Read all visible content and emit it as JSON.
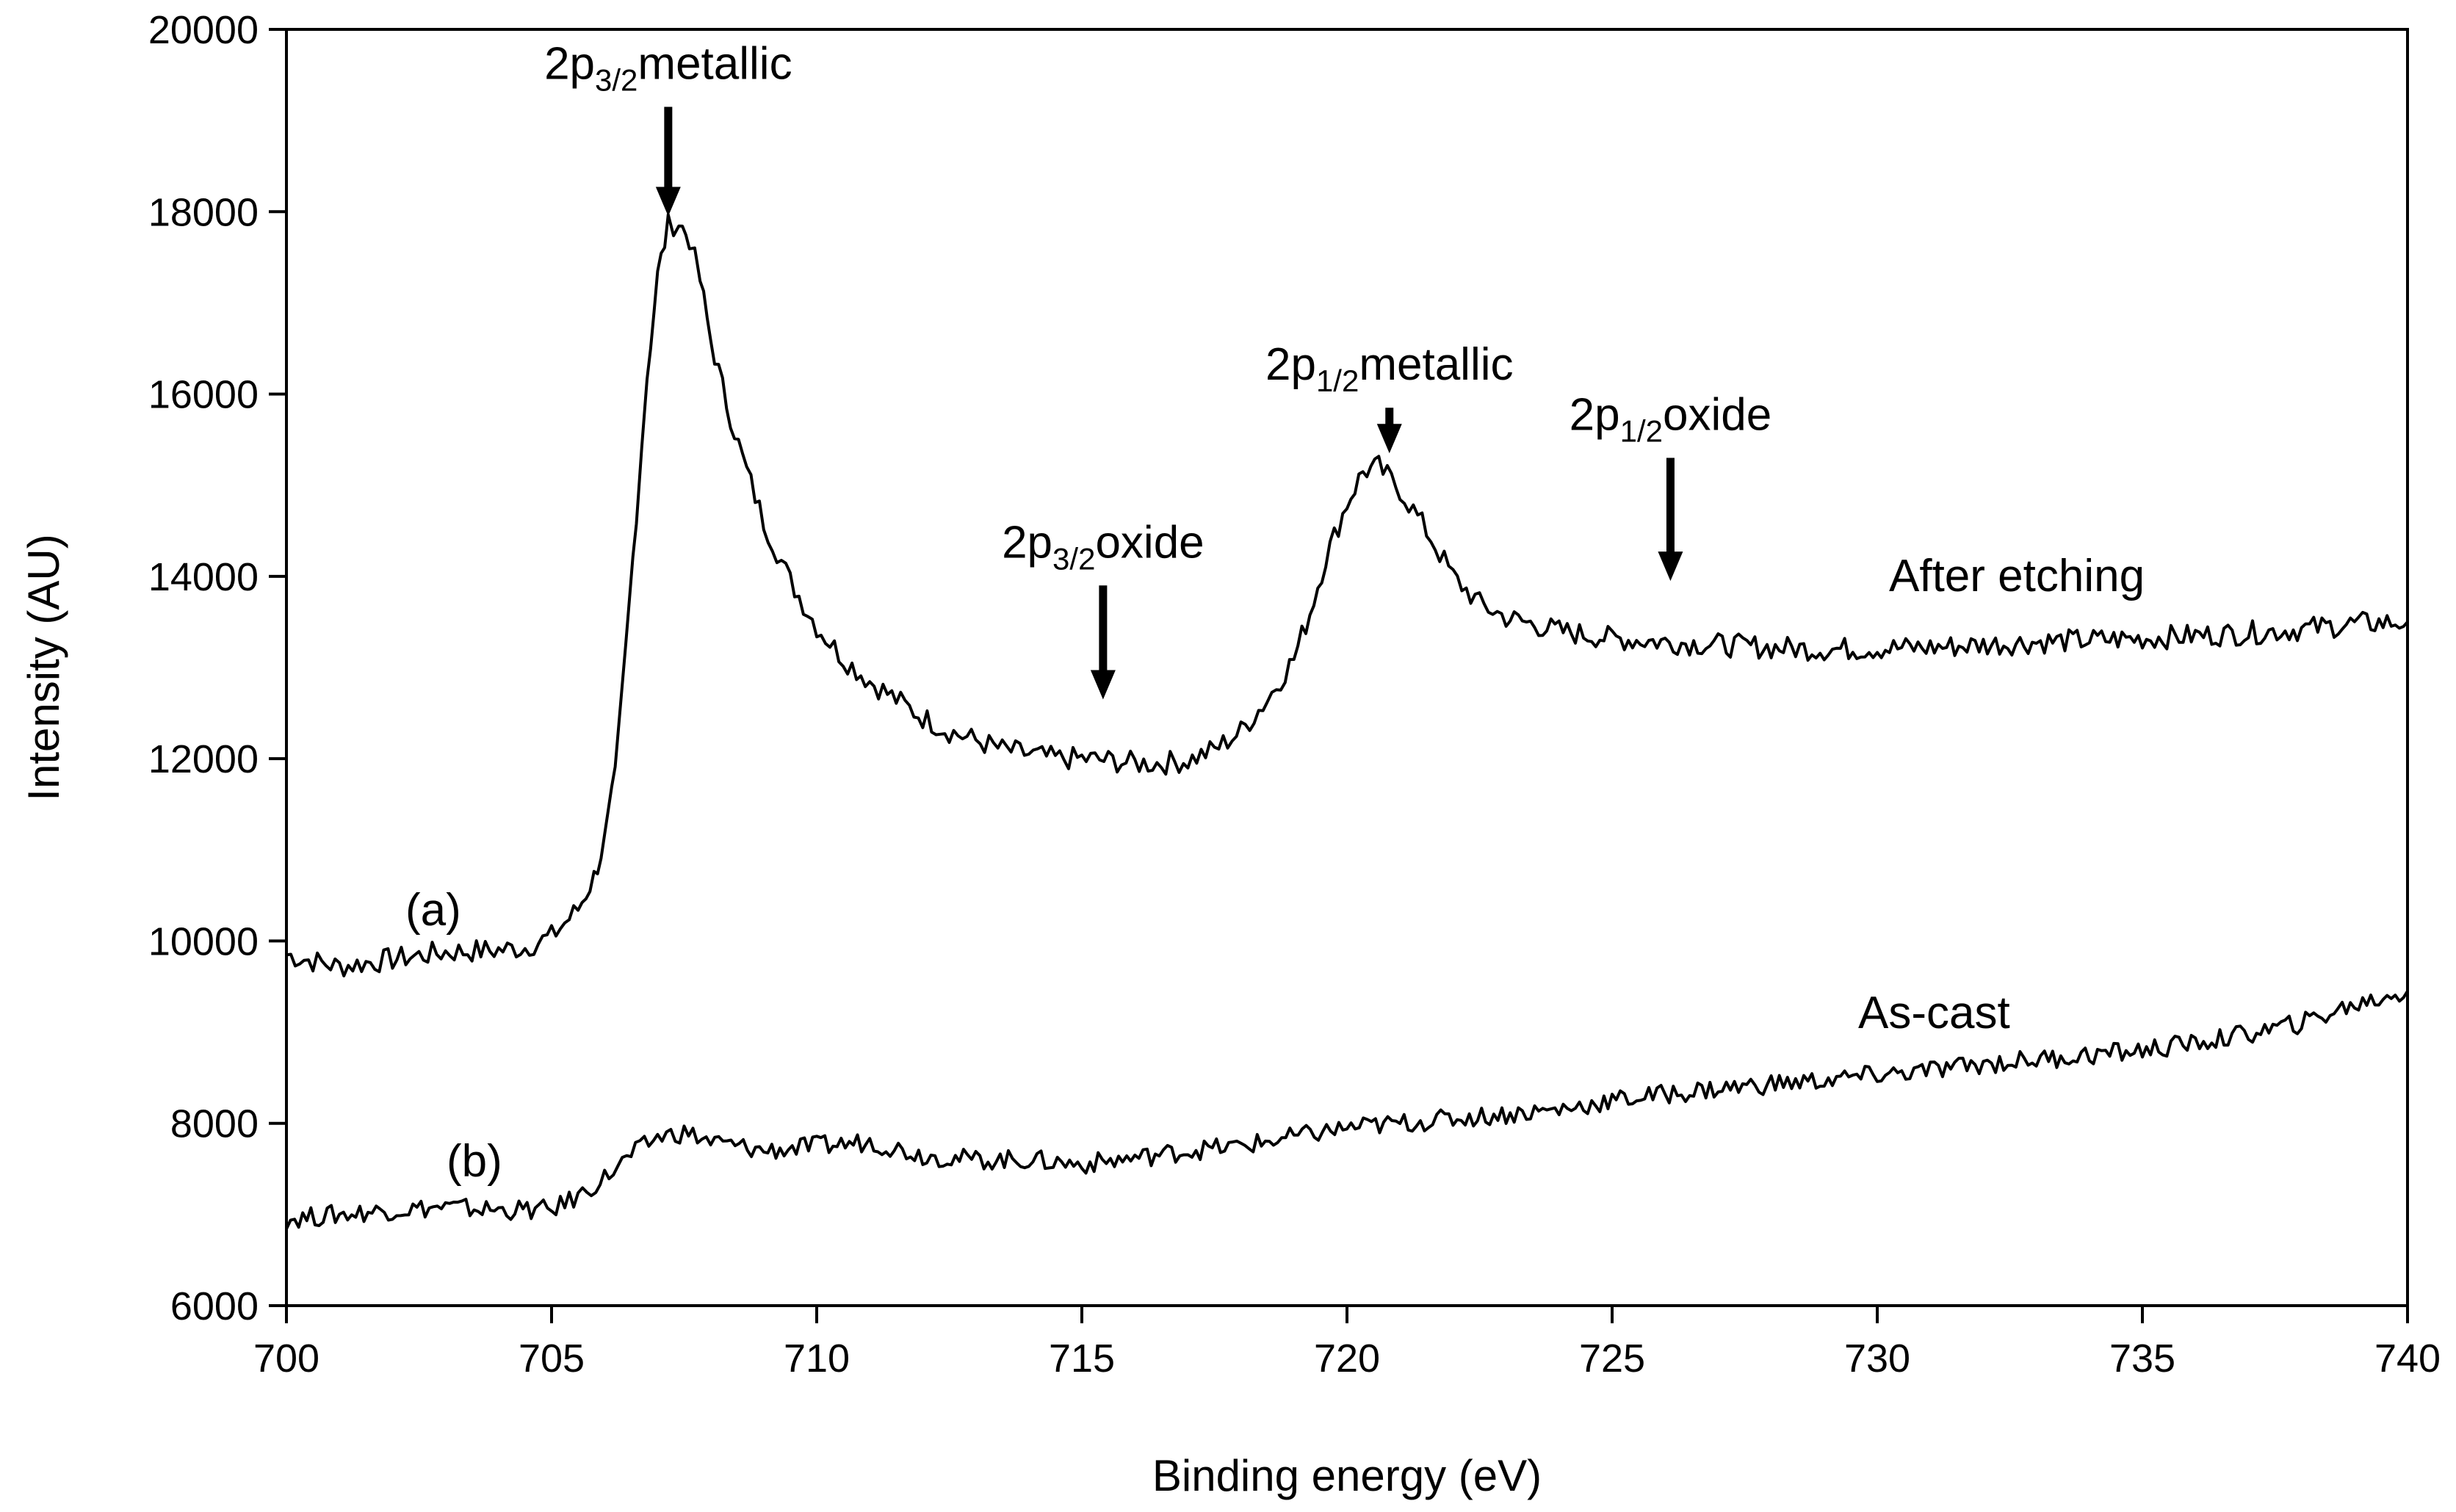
{
  "chart_data": {
    "type": "line",
    "xlabel": "Binding energy (eV)",
    "ylabel": "Intensity (AU)",
    "xlim": [
      700,
      740
    ],
    "ylim": [
      6000,
      20000
    ],
    "xticks": [
      700,
      705,
      710,
      715,
      720,
      725,
      730,
      735,
      740
    ],
    "yticks": [
      6000,
      8000,
      10000,
      12000,
      14000,
      16000,
      18000,
      20000
    ],
    "grid": false,
    "series": [
      {
        "label": "(a)",
        "tag": "After etching",
        "points": [
          [
            700,
            9850
          ],
          [
            700.5,
            9780
          ],
          [
            701,
            9720
          ],
          [
            701.5,
            9760
          ],
          [
            702,
            9800
          ],
          [
            702.5,
            9840
          ],
          [
            703,
            9880
          ],
          [
            703.5,
            9890
          ],
          [
            704,
            9900
          ],
          [
            704.5,
            9930
          ],
          [
            705,
            10050
          ],
          [
            705.5,
            10350
          ],
          [
            705.8,
            10700
          ],
          [
            706,
            11100
          ],
          [
            706.2,
            11800
          ],
          [
            706.4,
            13200
          ],
          [
            706.6,
            14700
          ],
          [
            706.8,
            16200
          ],
          [
            707,
            17300
          ],
          [
            707.2,
            17850
          ],
          [
            707.4,
            17880
          ],
          [
            707.6,
            17700
          ],
          [
            707.8,
            17250
          ],
          [
            708,
            16600
          ],
          [
            708.3,
            15900
          ],
          [
            708.6,
            15300
          ],
          [
            709,
            14600
          ],
          [
            709.5,
            13950
          ],
          [
            710,
            13450
          ],
          [
            710.5,
            13100
          ],
          [
            711,
            12850
          ],
          [
            711.5,
            12650
          ],
          [
            712,
            12450
          ],
          [
            712.5,
            12300
          ],
          [
            713,
            12200
          ],
          [
            713.5,
            12100
          ],
          [
            714,
            12050
          ],
          [
            714.5,
            12000
          ],
          [
            715,
            12000
          ],
          [
            715.5,
            11980
          ],
          [
            716,
            11950
          ],
          [
            716.5,
            11950
          ],
          [
            717,
            11980
          ],
          [
            717.5,
            12100
          ],
          [
            718,
            12300
          ],
          [
            718.5,
            12650
          ],
          [
            719,
            13100
          ],
          [
            719.3,
            13600
          ],
          [
            719.6,
            14200
          ],
          [
            720,
            14800
          ],
          [
            720.3,
            15150
          ],
          [
            720.6,
            15200
          ],
          [
            721,
            14950
          ],
          [
            721.5,
            14500
          ],
          [
            722,
            14000
          ],
          [
            722.5,
            13700
          ],
          [
            723,
            13550
          ],
          [
            724,
            13400
          ],
          [
            725,
            13320
          ],
          [
            726,
            13280
          ],
          [
            727,
            13250
          ],
          [
            728,
            13220
          ],
          [
            729,
            13200
          ],
          [
            730,
            13210
          ],
          [
            731,
            13220
          ],
          [
            732,
            13250
          ],
          [
            733,
            13280
          ],
          [
            734,
            13300
          ],
          [
            735,
            13320
          ],
          [
            736,
            13350
          ],
          [
            737,
            13380
          ],
          [
            738,
            13420
          ],
          [
            739,
            13480
          ],
          [
            740,
            13500
          ]
        ]
      },
      {
        "label": "(b)",
        "tag": "As-cast",
        "points": [
          [
            700,
            6950
          ],
          [
            701,
            7000
          ],
          [
            702,
            7050
          ],
          [
            703,
            7080
          ],
          [
            704,
            7050
          ],
          [
            705,
            7050
          ],
          [
            705.5,
            7200
          ],
          [
            706,
            7400
          ],
          [
            706.5,
            7650
          ],
          [
            707,
            7850
          ],
          [
            707.5,
            7900
          ],
          [
            708,
            7800
          ],
          [
            709,
            7700
          ],
          [
            710,
            7750
          ],
          [
            711,
            7800
          ],
          [
            712,
            7650
          ],
          [
            713,
            7600
          ],
          [
            714,
            7600
          ],
          [
            715,
            7550
          ],
          [
            716,
            7620
          ],
          [
            717,
            7700
          ],
          [
            718,
            7750
          ],
          [
            719,
            7850
          ],
          [
            720,
            7950
          ],
          [
            721,
            8000
          ],
          [
            722,
            8050
          ],
          [
            723,
            8100
          ],
          [
            724,
            8150
          ],
          [
            725,
            8250
          ],
          [
            726,
            8320
          ],
          [
            727,
            8380
          ],
          [
            728,
            8430
          ],
          [
            729,
            8470
          ],
          [
            730,
            8530
          ],
          [
            731,
            8580
          ],
          [
            732,
            8650
          ],
          [
            733,
            8700
          ],
          [
            734,
            8750
          ],
          [
            735,
            8800
          ],
          [
            736,
            8880
          ],
          [
            737,
            8980
          ],
          [
            738,
            9100
          ],
          [
            739,
            9300
          ],
          [
            740,
            9450
          ]
        ]
      }
    ],
    "annotations": [
      {
        "id": "2p32-metallic",
        "base": "2p",
        "sub": "3/2",
        "word": "metallic",
        "x": 707.2,
        "arrow_from": 19150,
        "arrow_to": 17950
      },
      {
        "id": "2p12-metallic",
        "base": "2p",
        "sub": "1/2",
        "word": "metallic",
        "x": 720.8,
        "arrow_from": 15850,
        "arrow_to": 15350
      },
      {
        "id": "2p32-oxide",
        "base": "2p",
        "sub": "3/2",
        "word": "oxide",
        "x": 715.4,
        "arrow_from": 13900,
        "arrow_to": 12650
      },
      {
        "id": "2p12-oxide",
        "base": "2p",
        "sub": "1/2",
        "word": "oxide",
        "x": 726.1,
        "arrow_from": 15300,
        "arrow_to": 13950
      }
    ]
  }
}
